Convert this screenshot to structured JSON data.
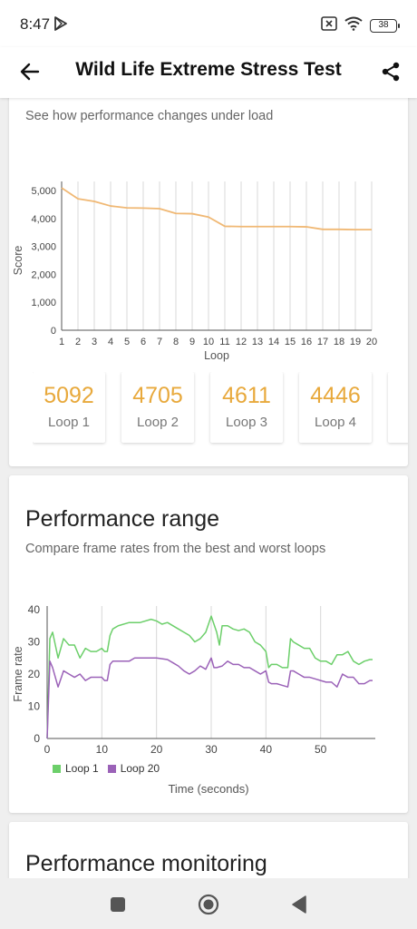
{
  "status_bar": {
    "time": "8:47",
    "battery": "38"
  },
  "app_bar": {
    "title": "Wild Life Extreme Stress Test"
  },
  "stability_card": {
    "subtitle": "See how performance changes under load",
    "chart_data": {
      "type": "line",
      "x_label": "Loop",
      "y_label": "Score",
      "x": [
        1,
        2,
        3,
        4,
        5,
        6,
        7,
        8,
        9,
        10,
        11,
        12,
        13,
        14,
        15,
        16,
        17,
        18,
        19,
        20
      ],
      "x_ticks": [
        "1",
        "2",
        "3",
        "4",
        "5",
        "6",
        "7",
        "8",
        "9",
        "10",
        "11",
        "12",
        "13",
        "14",
        "15",
        "16",
        "17",
        "18",
        "19",
        "20"
      ],
      "y_ticks": [
        "0",
        "1,000",
        "2,000",
        "3,000",
        "4,000",
        "5,000"
      ],
      "ylim": [
        0,
        5000
      ],
      "series": [
        {
          "values": [
            5092,
            4705,
            4611,
            4446,
            4380,
            4370,
            4350,
            4180,
            4170,
            4050,
            3720,
            3710,
            3710,
            3710,
            3710,
            3700,
            3610,
            3610,
            3600,
            3600
          ],
          "color": "#f0b874"
        }
      ],
      "grid": "vertical"
    },
    "loops": [
      {
        "score": "5092",
        "label": "Loop 1"
      },
      {
        "score": "4705",
        "label": "Loop 2"
      },
      {
        "score": "4611",
        "label": "Loop 3"
      },
      {
        "score": "4446",
        "label": "Loop 4"
      }
    ]
  },
  "range_card": {
    "title": "Performance range",
    "subtitle": "Compare frame rates from the best and worst loops",
    "chart_data": {
      "type": "line",
      "x_label": "Time (seconds)",
      "y_label": "Frame rate",
      "x_ticks": [
        "0",
        "10",
        "20",
        "30",
        "40",
        "50"
      ],
      "y_ticks": [
        "0",
        "10",
        "20",
        "30",
        "40"
      ],
      "xlim": [
        0,
        60
      ],
      "ylim": [
        0,
        40
      ],
      "series": [
        {
          "name": "Loop 1",
          "color": "#6ccf6a",
          "points": [
            [
              0,
              0
            ],
            [
              0.5,
              31
            ],
            [
              1,
              33
            ],
            [
              2,
              25
            ],
            [
              3,
              31
            ],
            [
              4,
              29
            ],
            [
              5,
              29
            ],
            [
              6,
              25
            ],
            [
              7,
              28
            ],
            [
              8,
              27
            ],
            [
              9,
              27
            ],
            [
              10,
              28
            ],
            [
              10.5,
              27
            ],
            [
              11,
              27
            ],
            [
              11.5,
              32
            ],
            [
              12,
              34
            ],
            [
              13,
              35
            ],
            [
              15,
              36
            ],
            [
              17,
              36
            ],
            [
              19,
              37
            ],
            [
              20,
              36.5
            ],
            [
              21,
              35.5
            ],
            [
              22,
              36
            ],
            [
              24,
              34
            ],
            [
              25,
              33
            ],
            [
              26,
              32
            ],
            [
              27,
              30
            ],
            [
              28,
              31
            ],
            [
              29,
              33
            ],
            [
              30,
              38
            ],
            [
              31,
              33
            ],
            [
              31.5,
              29
            ],
            [
              32,
              35
            ],
            [
              33,
              35
            ],
            [
              34,
              34
            ],
            [
              35,
              33.5
            ],
            [
              36,
              34
            ],
            [
              37,
              33
            ],
            [
              38,
              30
            ],
            [
              39,
              29
            ],
            [
              40,
              27
            ],
            [
              40.5,
              22
            ],
            [
              41,
              23
            ],
            [
              42,
              23
            ],
            [
              43,
              22
            ],
            [
              44,
              22
            ],
            [
              44.5,
              31
            ],
            [
              45,
              30
            ],
            [
              46,
              29
            ],
            [
              47,
              28
            ],
            [
              48,
              28
            ],
            [
              49,
              25
            ],
            [
              50,
              24
            ],
            [
              51,
              24
            ],
            [
              52,
              23
            ],
            [
              53,
              26
            ],
            [
              54,
              26
            ],
            [
              55,
              27
            ],
            [
              56,
              24
            ],
            [
              57,
              23
            ],
            [
              58,
              24
            ],
            [
              59,
              24.5
            ],
            [
              59.5,
              24.5
            ]
          ]
        },
        {
          "name": "Loop 20",
          "color": "#9b62b8",
          "points": [
            [
              0,
              0
            ],
            [
              0.5,
              24
            ],
            [
              1,
              22
            ],
            [
              2,
              16
            ],
            [
              3,
              21
            ],
            [
              4,
              20
            ],
            [
              5,
              19
            ],
            [
              6,
              20
            ],
            [
              7,
              18
            ],
            [
              8,
              19
            ],
            [
              9,
              19
            ],
            [
              10,
              19
            ],
            [
              10.5,
              18
            ],
            [
              11,
              18
            ],
            [
              11.5,
              23
            ],
            [
              12,
              24
            ],
            [
              13,
              24
            ],
            [
              14,
              24
            ],
            [
              15,
              24
            ],
            [
              16,
              25
            ],
            [
              18,
              25
            ],
            [
              20,
              25
            ],
            [
              22,
              24.5
            ],
            [
              23,
              23.5
            ],
            [
              24,
              22.5
            ],
            [
              25,
              21
            ],
            [
              26,
              20
            ],
            [
              27,
              21
            ],
            [
              28,
              22.5
            ],
            [
              29,
              21.5
            ],
            [
              30,
              25
            ],
            [
              30.5,
              22
            ],
            [
              31,
              22
            ],
            [
              32,
              22.5
            ],
            [
              33,
              24
            ],
            [
              34,
              23
            ],
            [
              35,
              23
            ],
            [
              36,
              22
            ],
            [
              37,
              22
            ],
            [
              38,
              21
            ],
            [
              39,
              20
            ],
            [
              40,
              21
            ],
            [
              40.5,
              17.5
            ],
            [
              41,
              17
            ],
            [
              42,
              17
            ],
            [
              43,
              16.5
            ],
            [
              44,
              16
            ],
            [
              44.5,
              21
            ],
            [
              45,
              21
            ],
            [
              46,
              20
            ],
            [
              47,
              19
            ],
            [
              48,
              19
            ],
            [
              49,
              18.5
            ],
            [
              50,
              18
            ],
            [
              51,
              17.5
            ],
            [
              52,
              17.5
            ],
            [
              53,
              16
            ],
            [
              54,
              20
            ],
            [
              55,
              19
            ],
            [
              56,
              19
            ],
            [
              57,
              17
            ],
            [
              58,
              17
            ],
            [
              59,
              18
            ],
            [
              59.5,
              18
            ]
          ]
        }
      ],
      "grid": "vertical"
    }
  },
  "monitoring_card": {
    "title": "Performance monitoring"
  }
}
